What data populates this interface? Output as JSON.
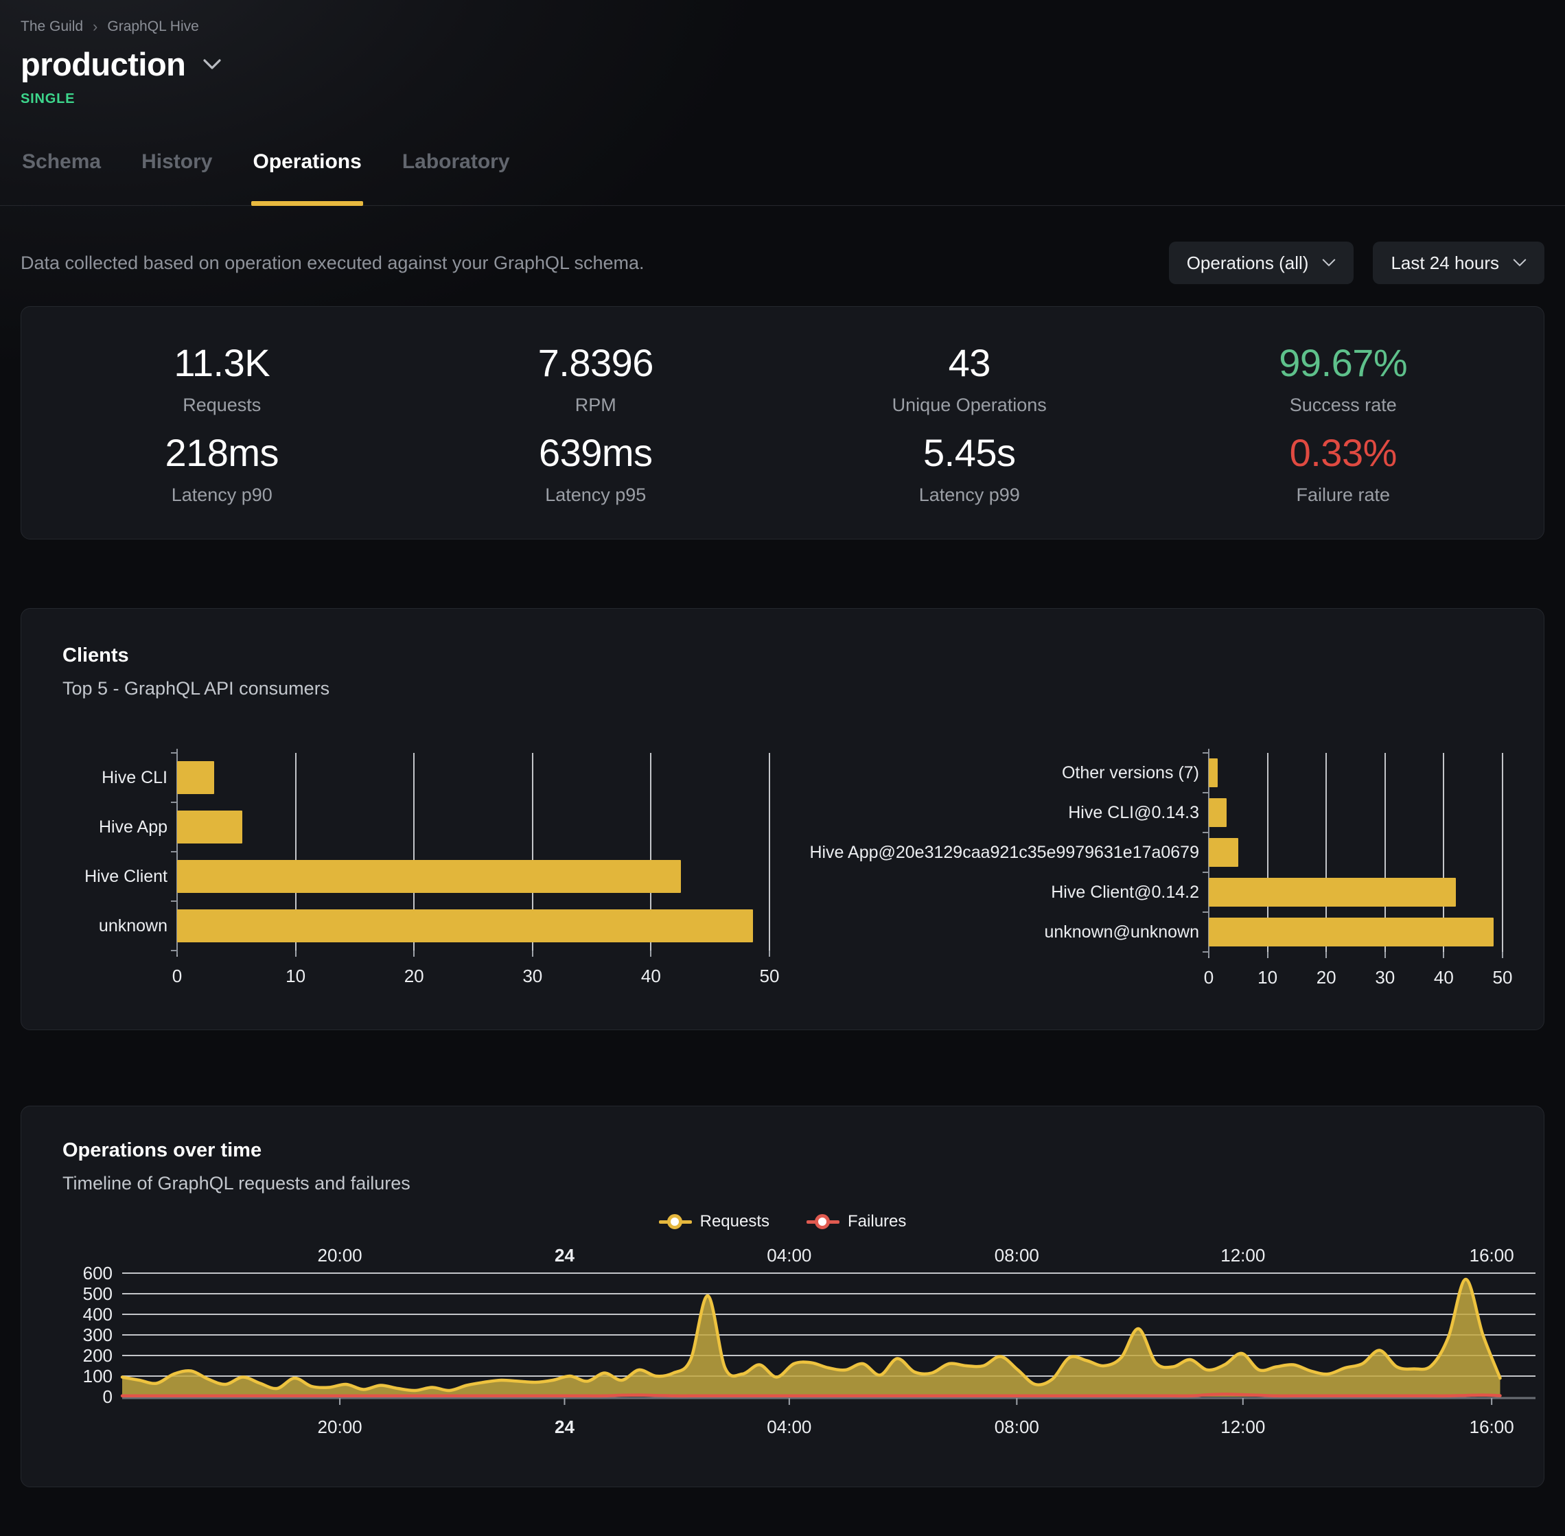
{
  "breadcrumb": {
    "items": [
      "The Guild",
      "GraphQL Hive"
    ],
    "separator": "›"
  },
  "header": {
    "title": "production",
    "badge": "SINGLE"
  },
  "tabs": [
    {
      "label": "Schema",
      "active": false
    },
    {
      "label": "History",
      "active": false
    },
    {
      "label": "Operations",
      "active": true
    },
    {
      "label": "Laboratory",
      "active": false
    }
  ],
  "filters": {
    "description": "Data collected based on operation executed against your GraphQL schema.",
    "operations_dropdown": "Operations (all)",
    "range_dropdown": "Last 24 hours"
  },
  "stats": [
    {
      "value": "11.3K",
      "label": "Requests",
      "color": "white"
    },
    {
      "value": "7.8396",
      "label": "RPM",
      "color": "white"
    },
    {
      "value": "43",
      "label": "Unique Operations",
      "color": "white"
    },
    {
      "value": "99.67%",
      "label": "Success rate",
      "color": "green"
    },
    {
      "value": "218ms",
      "label": "Latency p90",
      "color": "white"
    },
    {
      "value": "639ms",
      "label": "Latency p95",
      "color": "white"
    },
    {
      "value": "5.45s",
      "label": "Latency p99",
      "color": "white"
    },
    {
      "value": "0.33%",
      "label": "Failure rate",
      "color": "red"
    }
  ],
  "clients_card": {
    "title": "Clients",
    "subtitle": "Top 5 - GraphQL API consumers"
  },
  "ops_card": {
    "title": "Operations over time",
    "subtitle": "Timeline of GraphQL requests and failures",
    "legend": [
      {
        "label": "Requests",
        "color": "#e5b73e"
      },
      {
        "label": "Failures",
        "color": "#e05a50"
      }
    ]
  },
  "colors": {
    "accent_yellow": "#e8b93f",
    "bar_yellow": "#e2b63b",
    "line_yellow": "#eec33f",
    "area_fill": "rgba(196,169,64,0.84)",
    "failure_red": "#e25549",
    "success_green": "#5ec18b",
    "error_red": "#e04a41",
    "badge_green": "#3dd68c",
    "gridline": "rgba(240,242,246,0.8)",
    "axis_gray": "#6a6e75"
  },
  "chart_data": [
    {
      "id": "clients_by_name",
      "type": "bar",
      "orientation": "horizontal",
      "title": "Clients — top consumers by client name",
      "categories": [
        "Hive CLI",
        "Hive App",
        "Hive Client",
        "unknown"
      ],
      "values": [
        3.1,
        5.5,
        42.5,
        48.6
      ],
      "xlim": [
        0,
        50
      ],
      "xticks": [
        0,
        10,
        20,
        30,
        40,
        50
      ],
      "grid": true
    },
    {
      "id": "clients_by_version",
      "type": "bar",
      "orientation": "horizontal",
      "title": "Clients — top consumers by client version",
      "categories": [
        "Other versions (7)",
        "Hive CLI@0.14.3",
        "Hive App@20e3129caa921c35e9979631e17a0679",
        "Hive Client@0.14.2",
        "unknown@unknown"
      ],
      "values": [
        1.5,
        3,
        5,
        42,
        48.5
      ],
      "xlim": [
        0,
        50
      ],
      "xticks": [
        0,
        10,
        20,
        30,
        40,
        50
      ],
      "grid": true
    },
    {
      "id": "operations_over_time",
      "type": "area",
      "title": "Operations over time",
      "ylim": [
        0,
        600
      ],
      "yticks": [
        0,
        100,
        200,
        300,
        400,
        500,
        600
      ],
      "grid": true,
      "legend_position": "top-center",
      "x_ticks": [
        {
          "label": "20:00",
          "pos": 0.154,
          "bold": false
        },
        {
          "label": "24",
          "pos": 0.313,
          "bold": true
        },
        {
          "label": "04:00",
          "pos": 0.472,
          "bold": false
        },
        {
          "label": "08:00",
          "pos": 0.633,
          "bold": false
        },
        {
          "label": "12:00",
          "pos": 0.793,
          "bold": false
        },
        {
          "label": "16:00",
          "pos": 0.969,
          "bold": false
        }
      ],
      "series": [
        {
          "name": "Requests",
          "color": "#eec33f",
          "values": [
            95,
            80,
            65,
            110,
            125,
            85,
            60,
            95,
            65,
            40,
            90,
            50,
            45,
            60,
            35,
            55,
            40,
            30,
            45,
            30,
            55,
            70,
            80,
            75,
            70,
            80,
            100,
            75,
            115,
            80,
            130,
            100,
            115,
            180,
            490,
            140,
            110,
            155,
            95,
            160,
            165,
            140,
            130,
            160,
            105,
            185,
            120,
            115,
            160,
            150,
            150,
            195,
            130,
            60,
            85,
            190,
            175,
            150,
            190,
            330,
            165,
            145,
            180,
            130,
            155,
            210,
            130,
            145,
            155,
            125,
            110,
            140,
            160,
            225,
            145,
            135,
            150,
            290,
            570,
            300,
            90
          ]
        },
        {
          "name": "Failures",
          "color": "#e25549",
          "values": [
            4,
            4,
            4,
            4,
            4,
            4,
            4,
            4,
            4,
            4,
            4,
            4,
            4,
            4,
            4,
            4,
            4,
            4,
            4,
            4,
            4,
            4,
            4,
            4,
            4,
            4,
            4,
            4,
            4,
            7,
            8,
            6,
            4,
            4,
            4,
            4,
            4,
            4,
            4,
            4,
            4,
            4,
            4,
            4,
            4,
            4,
            4,
            4,
            4,
            4,
            4,
            4,
            4,
            4,
            4,
            4,
            4,
            4,
            4,
            4,
            4,
            4,
            4,
            9,
            12,
            10,
            7,
            4,
            4,
            4,
            4,
            4,
            4,
            4,
            4,
            4,
            4,
            4,
            6,
            8,
            5
          ]
        }
      ]
    }
  ]
}
